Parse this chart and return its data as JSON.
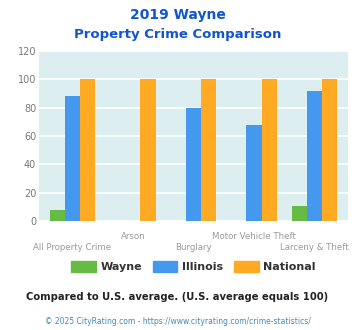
{
  "title_line1": "2019 Wayne",
  "title_line2": "Property Crime Comparison",
  "categories": [
    "All Property Crime",
    "Arson",
    "Burglary",
    "Motor Vehicle Theft",
    "Larceny & Theft"
  ],
  "wayne": [
    8,
    0,
    0,
    0,
    11
  ],
  "illinois": [
    88,
    0,
    80,
    68,
    92
  ],
  "national": [
    100,
    100,
    100,
    100,
    100
  ],
  "wayne_color": "#66bb44",
  "illinois_color": "#4499ee",
  "national_color": "#ffaa22",
  "ylim": [
    0,
    120
  ],
  "yticks": [
    0,
    20,
    40,
    60,
    80,
    100,
    120
  ],
  "background_color": "#ddeef0",
  "grid_color": "#ffffff",
  "title_color": "#1155cc",
  "footer_color": "#333333",
  "copyright_color": "#4488bb",
  "footer_text": "Compared to U.S. average. (U.S. average equals 100)",
  "copyright_text": "© 2025 CityRating.com - https://www.cityrating.com/crime-statistics/",
  "legend_labels": [
    "Wayne",
    "Illinois",
    "National"
  ],
  "bar_width": 0.25
}
